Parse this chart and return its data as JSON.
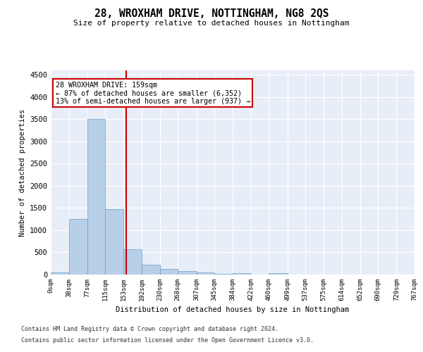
{
  "title": "28, WROXHAM DRIVE, NOTTINGHAM, NG8 2QS",
  "subtitle": "Size of property relative to detached houses in Nottingham",
  "xlabel": "Distribution of detached houses by size in Nottingham",
  "ylabel": "Number of detached properties",
  "bar_color": "#b8cfe8",
  "bar_edge_color": "#6a9fc8",
  "vline_color": "#cc0000",
  "vline_x": 159,
  "annotation_title": "28 WROXHAM DRIVE: 159sqm",
  "annotation_line1": "← 87% of detached houses are smaller (6,352)",
  "annotation_line2": "13% of semi-detached houses are larger (937) →",
  "annotation_box_color": "#cc0000",
  "bin_edges": [
    0,
    38,
    77,
    115,
    153,
    192,
    230,
    268,
    307,
    345,
    384,
    422,
    460,
    499,
    537,
    575,
    614,
    652,
    690,
    729,
    767
  ],
  "bar_heights": [
    50,
    1250,
    3500,
    1470,
    570,
    230,
    120,
    80,
    40,
    10,
    30,
    0,
    30,
    0,
    0,
    0,
    0,
    0,
    0,
    0
  ],
  "ylim": [
    0,
    4600
  ],
  "yticks": [
    0,
    500,
    1000,
    1500,
    2000,
    2500,
    3000,
    3500,
    4000,
    4500
  ],
  "background_color": "#e8eef8",
  "grid_color": "#ffffff",
  "footer_line1": "Contains HM Land Registry data © Crown copyright and database right 2024.",
  "footer_line2": "Contains public sector information licensed under the Open Government Licence v3.0."
}
